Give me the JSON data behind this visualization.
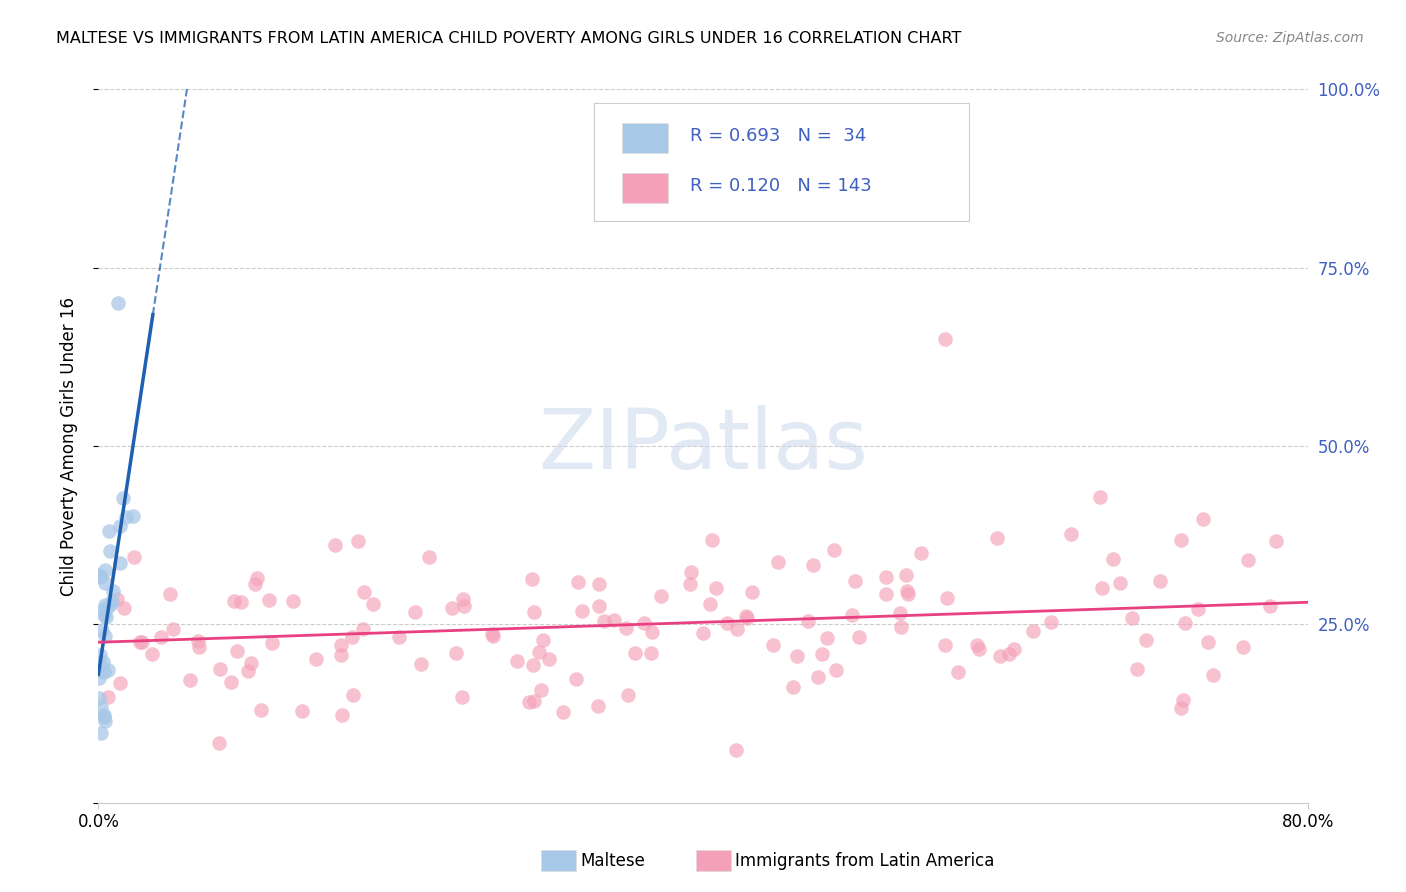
{
  "title": "MALTESE VS IMMIGRANTS FROM LATIN AMERICA CHILD POVERTY AMONG GIRLS UNDER 16 CORRELATION CHART",
  "source": "Source: ZipAtlas.com",
  "ylabel": "Child Poverty Among Girls Under 16",
  "blue_R": 0.693,
  "blue_N": 34,
  "pink_R": 0.12,
  "pink_N": 143,
  "blue_color": "#a8c8e8",
  "pink_color": "#f4a0b8",
  "blue_line_color": "#2060b0",
  "pink_line_color": "#e84080",
  "right_axis_color": "#4060c0",
  "watermark_color": "#c8d8ec",
  "grid_color": "#cccccc",
  "legend_border_color": "#cccccc",
  "title_fontsize": 11.5,
  "source_fontsize": 10,
  "axis_fontsize": 12,
  "legend_fontsize": 13,
  "watermark_fontsize": 60
}
